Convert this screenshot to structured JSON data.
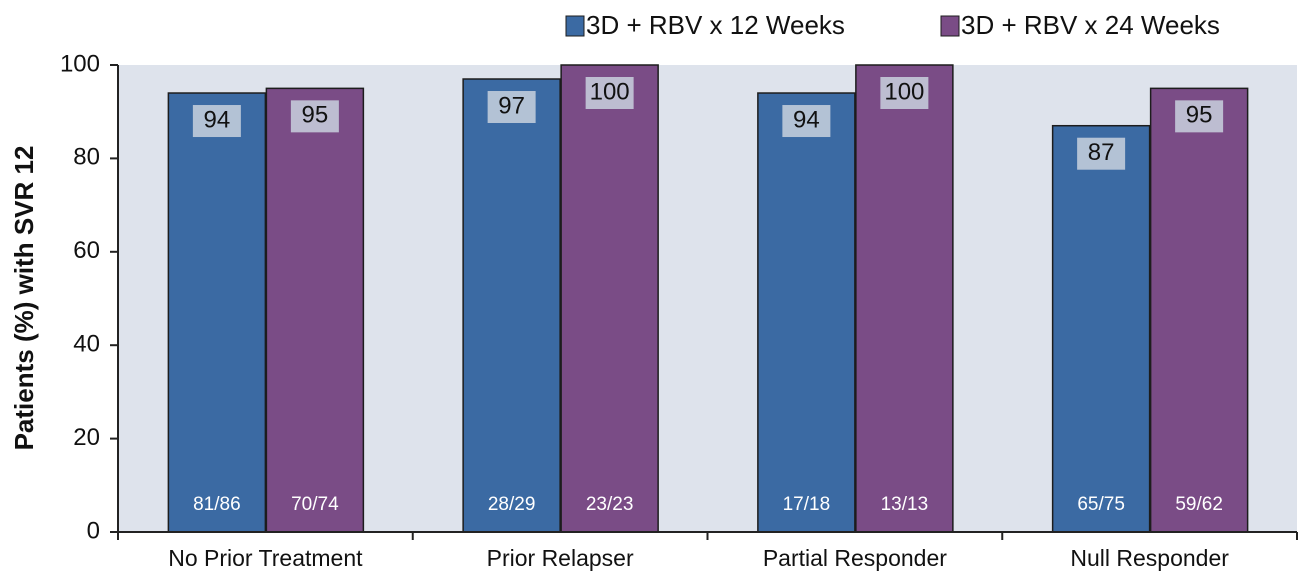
{
  "chart_data": {
    "type": "bar",
    "y_label": "Patients (%) with SVR 12",
    "categories": [
      "No Prior Treatment",
      "Prior Relapser",
      "Partial Responder",
      "Null Responder"
    ],
    "series": [
      {
        "name": "3D + RBV x 12 Weeks",
        "color": "#3b6aa3",
        "values": [
          94,
          97,
          94,
          87
        ],
        "counts": [
          "81/86",
          "28/29",
          "17/18",
          "65/75"
        ]
      },
      {
        "name": "3D + RBV x 24 Weeks",
        "color": "#7a4c86",
        "values": [
          95,
          100,
          100,
          95
        ],
        "counts": [
          "70/74",
          "23/23",
          "13/13",
          "59/62"
        ]
      }
    ],
    "ylim": [
      0,
      100
    ],
    "yticks": [
      0,
      20,
      40,
      60,
      80,
      100
    ],
    "legend": "top-right",
    "grid": false
  }
}
